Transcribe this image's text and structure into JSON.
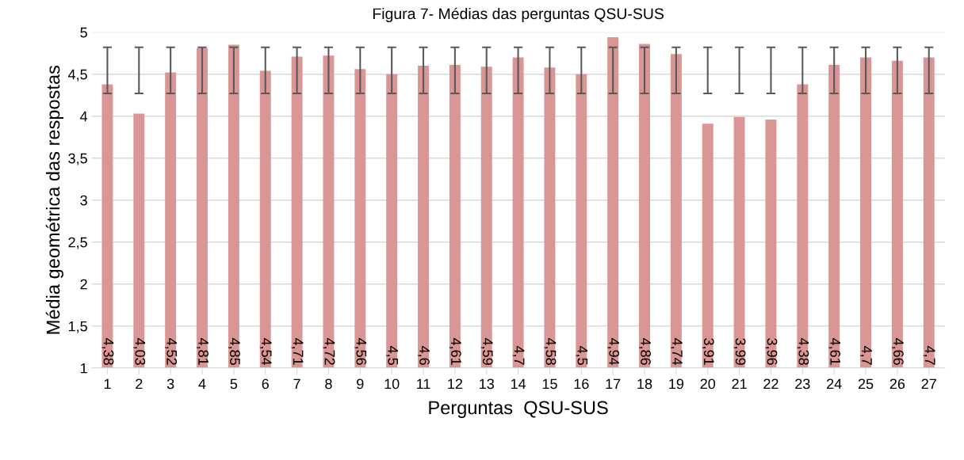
{
  "chart_data": {
    "type": "bar",
    "title": "Figura 7- Médias das perguntas QSU-SUS",
    "xlabel": "Perguntas  QSU-SUS",
    "ylabel": "Média geométrica das respostas",
    "categories": [
      "1",
      "2",
      "3",
      "4",
      "5",
      "6",
      "7",
      "8",
      "9",
      "10",
      "11",
      "12",
      "13",
      "14",
      "15",
      "16",
      "17",
      "18",
      "19",
      "20",
      "21",
      "22",
      "23",
      "24",
      "25",
      "26",
      "27"
    ],
    "values": [
      4.38,
      4.03,
      4.52,
      4.81,
      4.85,
      4.54,
      4.71,
      4.72,
      4.56,
      4.5,
      4.6,
      4.61,
      4.59,
      4.7,
      4.58,
      4.5,
      4.94,
      4.86,
      4.74,
      3.91,
      3.99,
      3.96,
      4.38,
      4.61,
      4.7,
      4.66,
      4.7
    ],
    "value_labels": [
      "4,38",
      "4,03",
      "4,52",
      "4,81",
      "4,85",
      "4,54",
      "4,71",
      "4,72",
      "4,56",
      "4,5",
      "4,6",
      "4,61",
      "4,59",
      "4,7",
      "4,58",
      "4,5",
      "4,94",
      "4,86",
      "4,74",
      "3,91",
      "3,99",
      "3,96",
      "4,38",
      "4,61",
      "4,7",
      "4,66",
      "4,7"
    ],
    "errors": [
      [
        4.27,
        4.82
      ],
      [
        4.27,
        4.82
      ],
      [
        4.27,
        4.82
      ],
      [
        4.27,
        4.82
      ],
      [
        4.27,
        4.82
      ],
      [
        4.27,
        4.82
      ],
      [
        4.27,
        4.82
      ],
      [
        4.27,
        4.82
      ],
      [
        4.27,
        4.82
      ],
      [
        4.27,
        4.82
      ],
      [
        4.27,
        4.82
      ],
      [
        4.27,
        4.82
      ],
      [
        4.27,
        4.82
      ],
      [
        4.27,
        4.82
      ],
      [
        4.27,
        4.82
      ],
      [
        4.27,
        4.82
      ],
      [
        4.27,
        4.82
      ],
      [
        4.27,
        4.82
      ],
      [
        4.27,
        4.82
      ],
      [
        4.27,
        4.82
      ],
      [
        4.27,
        4.82
      ],
      [
        4.27,
        4.82
      ],
      [
        4.27,
        4.82
      ],
      [
        4.27,
        4.82
      ],
      [
        4.27,
        4.82
      ],
      [
        4.27,
        4.82
      ],
      [
        4.27,
        4.82
      ]
    ],
    "color": "#d99694",
    "ylim": [
      1,
      5
    ],
    "yticks": [
      1,
      {
        "value": 1.5,
        "label": "1,5"
      },
      2,
      {
        "value": 2.5,
        "label": "2,5"
      },
      3,
      {
        "value": 3.5,
        "label": "3,5"
      },
      4,
      {
        "value": 4.5,
        "label": "4,5"
      },
      5
    ],
    "grid": "y",
    "legend": false
  }
}
